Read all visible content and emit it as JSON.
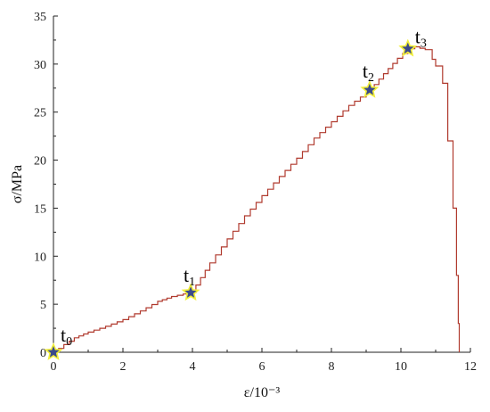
{
  "chart_data": {
    "type": "line",
    "xlabel": "ε/10⁻³",
    "ylabel": "σ/MPa",
    "xlim": [
      0,
      12
    ],
    "ylim": [
      0,
      35
    ],
    "x_ticks": [
      0,
      2,
      4,
      6,
      8,
      10,
      12
    ],
    "y_ticks": [
      0,
      5,
      10,
      15,
      20,
      25,
      30,
      35
    ],
    "x_tick_labels": [
      "0",
      "2",
      "4",
      "6",
      "8",
      "10",
      "12"
    ],
    "y_tick_labels": [
      "0",
      "5",
      "10",
      "15",
      "20",
      "25",
      "30",
      "35"
    ],
    "grid": false,
    "series": [
      {
        "color": "#b03a2e",
        "x": [
          0.0,
          0.3,
          0.6,
          1.0,
          1.5,
          2.0,
          2.5,
          3.0,
          3.4,
          3.9,
          4.1,
          4.5,
          5.0,
          5.5,
          6.0,
          6.5,
          7.0,
          7.5,
          8.0,
          8.5,
          9.0,
          9.1,
          9.5,
          9.9,
          10.2,
          10.4,
          10.7,
          10.9,
          11.0,
          11.2,
          11.35,
          11.5,
          11.6,
          11.65,
          11.68
        ],
        "y": [
          0.0,
          0.8,
          1.5,
          2.1,
          2.7,
          3.4,
          4.3,
          5.3,
          5.8,
          6.2,
          7.0,
          9.3,
          11.8,
          14.2,
          16.3,
          18.3,
          20.2,
          22.3,
          24.0,
          25.7,
          27.0,
          27.3,
          29.0,
          30.6,
          31.6,
          31.8,
          31.5,
          30.5,
          29.8,
          28.0,
          22.0,
          15.0,
          8.0,
          3.0,
          0.0
        ]
      }
    ],
    "markers": [
      {
        "label": "t",
        "sub": "0",
        "x": 0.0,
        "y": 0.0
      },
      {
        "label": "t",
        "sub": "1",
        "x": 3.95,
        "y": 6.2
      },
      {
        "label": "t",
        "sub": "2",
        "x": 9.1,
        "y": 27.3
      },
      {
        "label": "t",
        "sub": "3",
        "x": 10.2,
        "y": 31.6
      }
    ],
    "colors": {
      "line": "#b03a2e",
      "star_fill": "#3b4a8a",
      "star_halo": "#f2ef3a",
      "axis": "#222222"
    }
  }
}
